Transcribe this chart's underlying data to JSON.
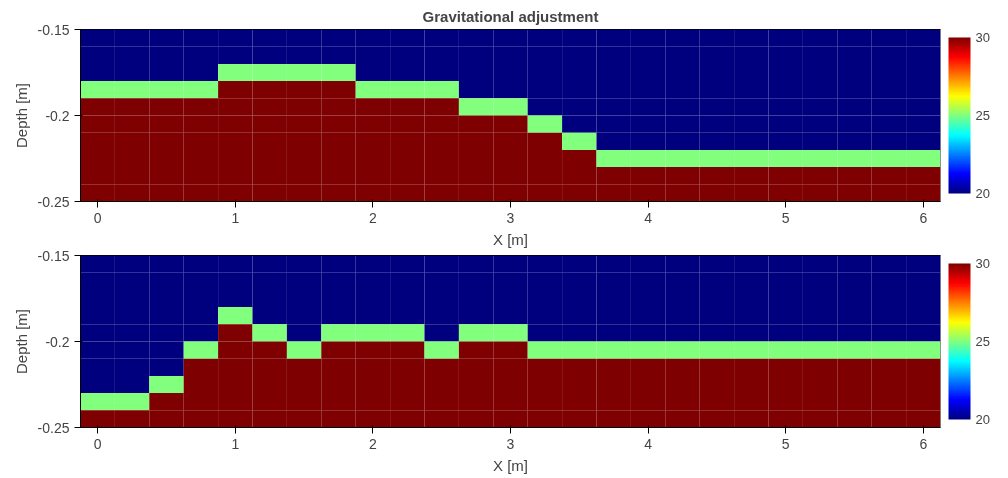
{
  "chart_data": [
    {
      "type": "heatmap",
      "title": "Gravitational adjustment",
      "xlabel": "X [m]",
      "ylabel": "Depth [m]",
      "x": [
        0,
        0.25,
        0.5,
        0.75,
        1,
        1.25,
        1.5,
        1.75,
        2,
        2.25,
        2.5,
        2.75,
        3,
        3.25,
        3.5,
        3.75,
        4,
        4.25,
        4.5,
        4.75,
        5,
        5.25,
        5.5,
        5.75,
        6
      ],
      "cells": [
        [
          20,
          20,
          20,
          20,
          20,
          20,
          20,
          20,
          20,
          20,
          20,
          20,
          20,
          20,
          20,
          20,
          20,
          20,
          20,
          20,
          20,
          20,
          20,
          20,
          20
        ],
        [
          20,
          20,
          20,
          20,
          20,
          20,
          20,
          20,
          20,
          20,
          20,
          20,
          20,
          20,
          20,
          20,
          20,
          20,
          20,
          20,
          20,
          20,
          20,
          20,
          20
        ],
        [
          20,
          20,
          20,
          20,
          25,
          25,
          25,
          25,
          20,
          20,
          20,
          20,
          20,
          20,
          20,
          20,
          20,
          20,
          20,
          20,
          20,
          20,
          20,
          20,
          20
        ],
        [
          25,
          25,
          25,
          25,
          30,
          30,
          30,
          30,
          25,
          25,
          25,
          20,
          20,
          20,
          20,
          20,
          20,
          20,
          20,
          20,
          20,
          20,
          20,
          20,
          20
        ],
        [
          30,
          30,
          30,
          30,
          30,
          30,
          30,
          30,
          30,
          30,
          30,
          25,
          25,
          20,
          20,
          20,
          20,
          20,
          20,
          20,
          20,
          20,
          20,
          20,
          20
        ],
        [
          30,
          30,
          30,
          30,
          30,
          30,
          30,
          30,
          30,
          30,
          30,
          30,
          30,
          25,
          20,
          20,
          20,
          20,
          20,
          20,
          20,
          20,
          20,
          20,
          20
        ],
        [
          30,
          30,
          30,
          30,
          30,
          30,
          30,
          30,
          30,
          30,
          30,
          30,
          30,
          30,
          25,
          20,
          20,
          20,
          20,
          20,
          20,
          20,
          20,
          20,
          20
        ],
        [
          30,
          30,
          30,
          30,
          30,
          30,
          30,
          30,
          30,
          30,
          30,
          30,
          30,
          30,
          30,
          25,
          25,
          25,
          25,
          25,
          25,
          25,
          25,
          25,
          25
        ],
        [
          30,
          30,
          30,
          30,
          30,
          30,
          30,
          30,
          30,
          30,
          30,
          30,
          30,
          30,
          30,
          30,
          30,
          30,
          30,
          30,
          30,
          30,
          30,
          30,
          30
        ],
        [
          30,
          30,
          30,
          30,
          30,
          30,
          30,
          30,
          30,
          30,
          30,
          30,
          30,
          30,
          30,
          30,
          30,
          30,
          30,
          30,
          30,
          30,
          30,
          30,
          30
        ]
      ],
      "xlim": [
        -0.125,
        6.125
      ],
      "ylim": [
        -0.25,
        -0.15
      ],
      "xticks": [
        0,
        1,
        2,
        3,
        4,
        5,
        6
      ],
      "yticks": [
        -0.25,
        -0.2,
        -0.15
      ],
      "clim": [
        20,
        30
      ],
      "cticks": [
        20,
        25,
        30
      ]
    },
    {
      "type": "heatmap",
      "xlabel": "X [m]",
      "ylabel": "Depth [m]",
      "x": [
        0,
        0.25,
        0.5,
        0.75,
        1,
        1.25,
        1.5,
        1.75,
        2,
        2.25,
        2.5,
        2.75,
        3,
        3.25,
        3.5,
        3.75,
        4,
        4.25,
        4.5,
        4.75,
        5,
        5.25,
        5.5,
        5.75,
        6
      ],
      "cells": [
        [
          20,
          20,
          20,
          20,
          20,
          20,
          20,
          20,
          20,
          20,
          20,
          20,
          20,
          20,
          20,
          20,
          20,
          20,
          20,
          20,
          20,
          20,
          20,
          20,
          20
        ],
        [
          20,
          20,
          20,
          20,
          20,
          20,
          20,
          20,
          20,
          20,
          20,
          20,
          20,
          20,
          20,
          20,
          20,
          20,
          20,
          20,
          20,
          20,
          20,
          20,
          20
        ],
        [
          20,
          20,
          20,
          20,
          20,
          20,
          20,
          20,
          20,
          20,
          20,
          20,
          20,
          20,
          20,
          20,
          20,
          20,
          20,
          20,
          20,
          20,
          20,
          20,
          20
        ],
        [
          20,
          20,
          20,
          20,
          25,
          20,
          20,
          20,
          20,
          20,
          20,
          20,
          20,
          20,
          20,
          20,
          20,
          20,
          20,
          20,
          20,
          20,
          20,
          20,
          20
        ],
        [
          20,
          20,
          20,
          20,
          30,
          25,
          20,
          25,
          25,
          25,
          20,
          25,
          25,
          20,
          20,
          20,
          20,
          20,
          20,
          20,
          20,
          20,
          20,
          20,
          20
        ],
        [
          20,
          20,
          20,
          25,
          30,
          30,
          25,
          30,
          30,
          30,
          25,
          30,
          30,
          25,
          25,
          25,
          25,
          25,
          25,
          25,
          25,
          25,
          25,
          25,
          25
        ],
        [
          20,
          20,
          20,
          30,
          30,
          30,
          30,
          30,
          30,
          30,
          30,
          30,
          30,
          30,
          30,
          30,
          30,
          30,
          30,
          30,
          30,
          30,
          30,
          30,
          30
        ],
        [
          20,
          20,
          25,
          30,
          30,
          30,
          30,
          30,
          30,
          30,
          30,
          30,
          30,
          30,
          30,
          30,
          30,
          30,
          30,
          30,
          30,
          30,
          30,
          30,
          30
        ],
        [
          25,
          25,
          30,
          30,
          30,
          30,
          30,
          30,
          30,
          30,
          30,
          30,
          30,
          30,
          30,
          30,
          30,
          30,
          30,
          30,
          30,
          30,
          30,
          30,
          30
        ],
        [
          30,
          30,
          30,
          30,
          30,
          30,
          30,
          30,
          30,
          30,
          30,
          30,
          30,
          30,
          30,
          30,
          30,
          30,
          30,
          30,
          30,
          30,
          30,
          30,
          30
        ]
      ],
      "xlim": [
        -0.125,
        6.125
      ],
      "ylim": [
        -0.25,
        -0.15
      ],
      "xticks": [
        0,
        1,
        2,
        3,
        4,
        5,
        6
      ],
      "yticks": [
        -0.25,
        -0.2,
        -0.15
      ],
      "clim": [
        20,
        30
      ],
      "cticks": [
        20,
        25,
        30
      ]
    }
  ]
}
